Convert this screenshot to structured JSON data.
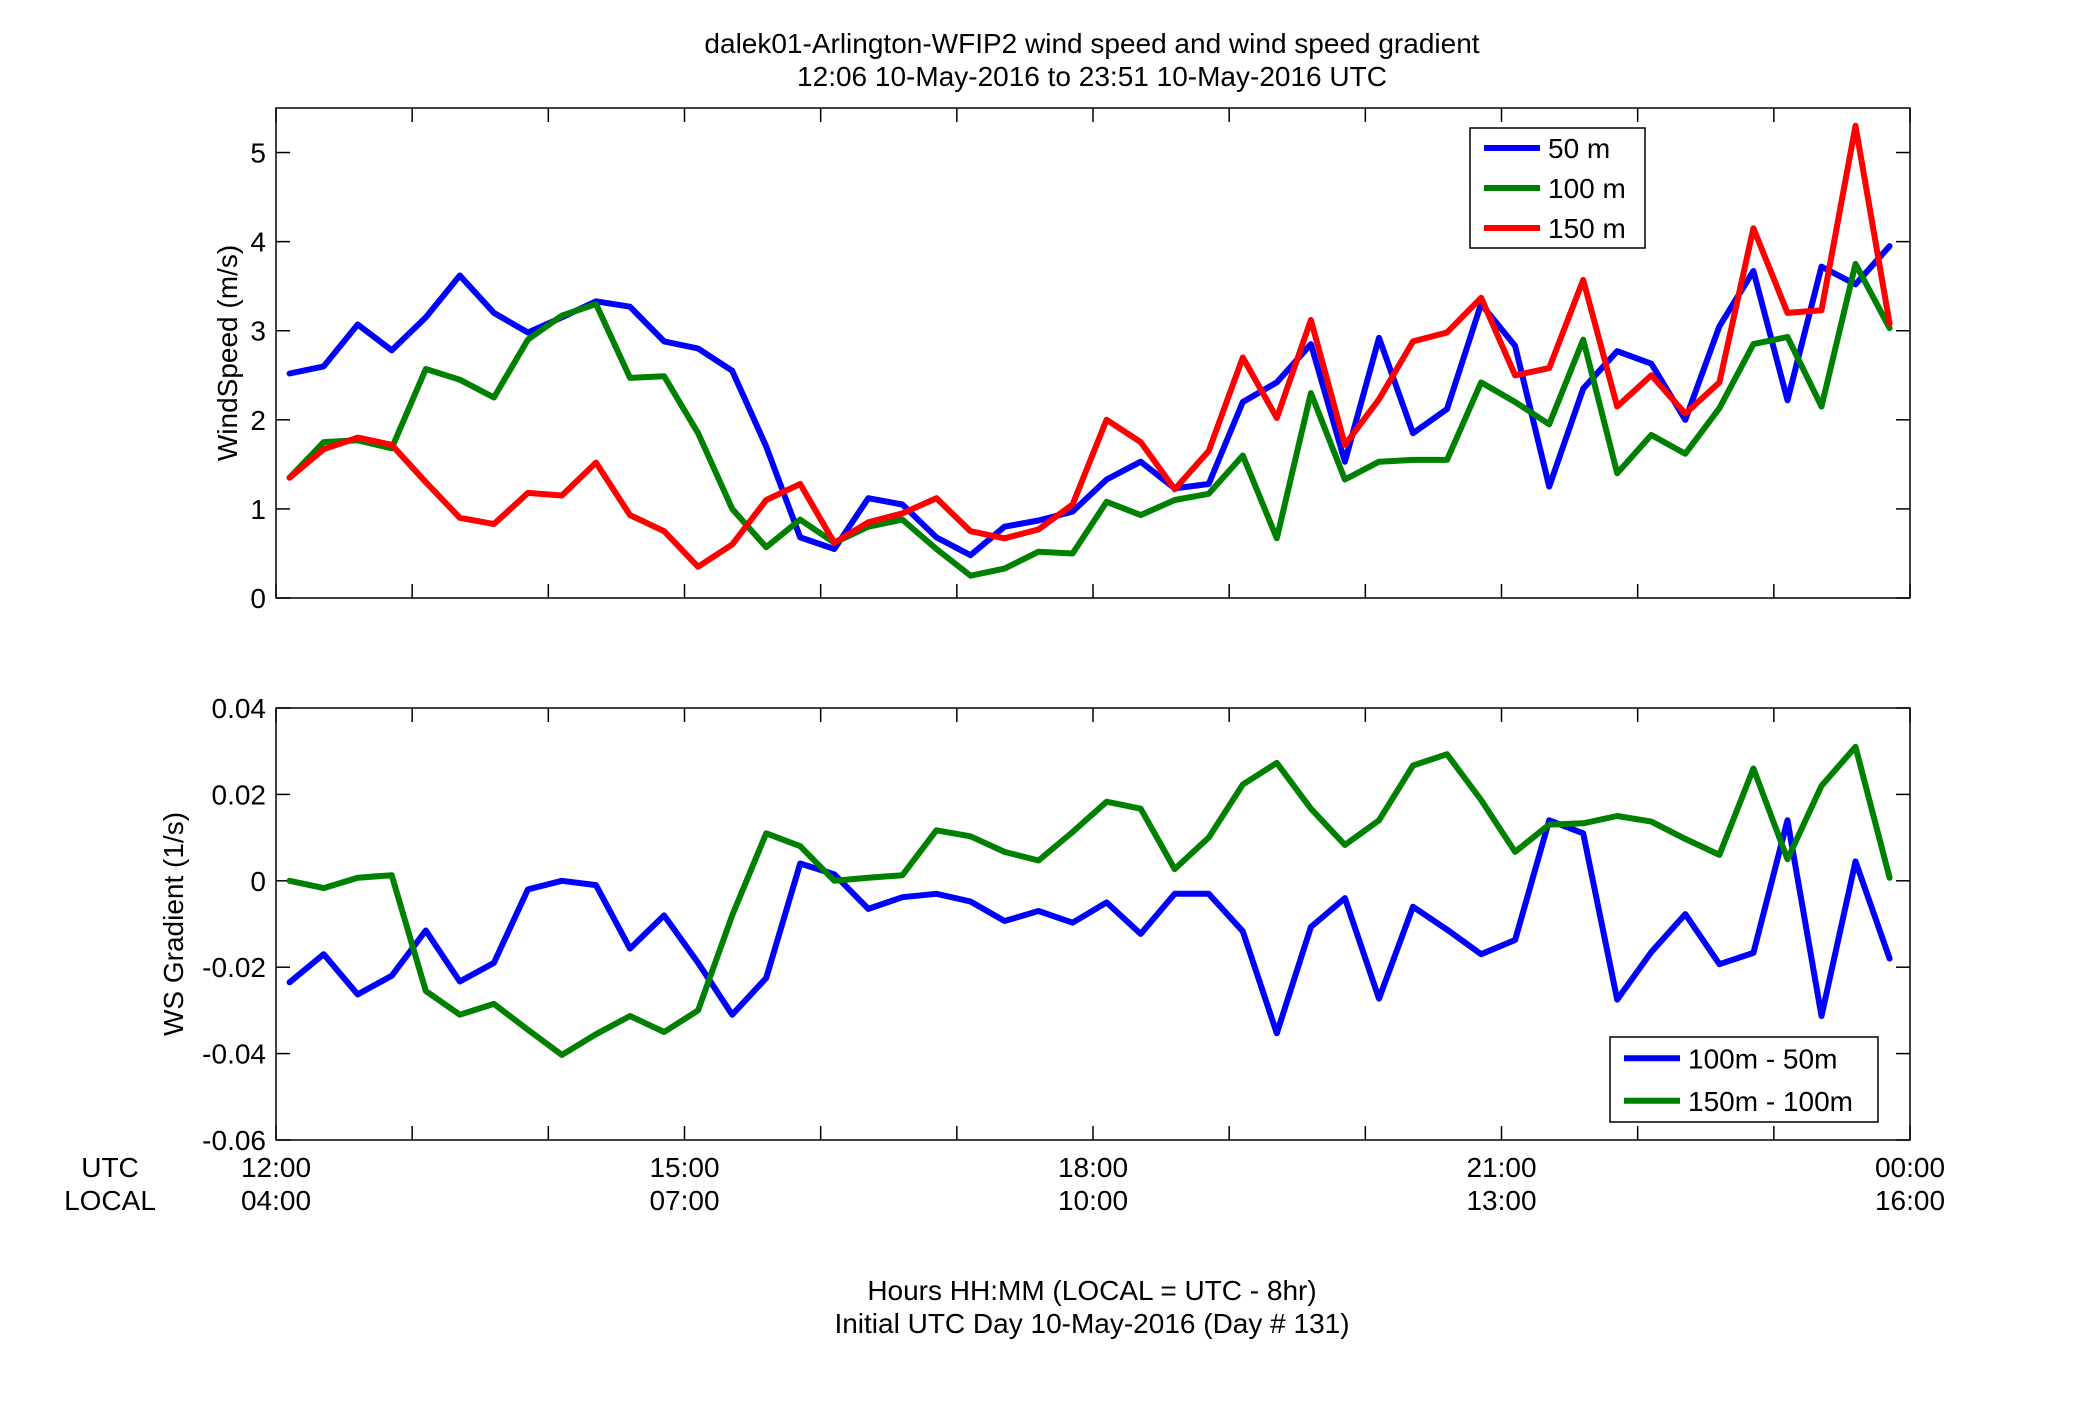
{
  "figure": {
    "title_line1": "dalek01-Arlington-WFIP2  wind speed and wind speed gradient",
    "title_line2": "12:06 10-May-2016 to 23:51 10-May-2016  UTC",
    "xlabel_line1": "Hours HH:MM  (LOCAL = UTC - 8hr)",
    "xlabel_line2": "Initial UTC Day 10-May-2016 (Day # 131)",
    "utc_label": "UTC",
    "local_label": "LOCAL",
    "x_ticks_utc": [
      "12:00",
      "15:00",
      "18:00",
      "21:00",
      "00:00"
    ],
    "x_ticks_local": [
      "04:00",
      "07:00",
      "10:00",
      "13:00",
      "16:00"
    ]
  },
  "chart_data": [
    {
      "type": "line",
      "title": "dalek01-Arlington-WFIP2  wind speed and wind speed gradient",
      "subtitle": "12:06 10-May-2016 to 23:51 10-May-2016  UTC",
      "xlabel": "",
      "ylabel": "WindSpeed (m/s)",
      "xlim": [
        12.0,
        24.0
      ],
      "ylim": [
        0,
        5.5
      ],
      "yticks": [
        0,
        1,
        2,
        3,
        4,
        5
      ],
      "xticks": [
        12,
        15,
        18,
        21,
        24
      ],
      "grid": false,
      "legend": "top-right",
      "x": [
        12.1,
        12.35,
        12.6,
        12.85,
        13.1,
        13.35,
        13.6,
        13.85,
        14.1,
        14.35,
        14.6,
        14.85,
        15.1,
        15.35,
        15.6,
        15.85,
        16.1,
        16.35,
        16.6,
        16.85,
        17.1,
        17.35,
        17.6,
        17.85,
        18.1,
        18.35,
        18.6,
        18.85,
        19.1,
        19.35,
        19.6,
        19.85,
        20.1,
        20.35,
        20.6,
        20.85,
        21.1,
        21.35,
        21.6,
        21.85,
        22.1,
        22.35,
        22.6,
        22.85,
        23.1,
        23.35,
        23.6,
        23.85
      ],
      "series": [
        {
          "name": "50 m",
          "color": "#0000ff",
          "values": [
            2.52,
            2.6,
            3.07,
            2.78,
            3.15,
            3.62,
            3.2,
            2.98,
            3.15,
            3.33,
            3.27,
            2.88,
            2.8,
            2.55,
            1.7,
            0.68,
            0.55,
            1.12,
            1.05,
            0.68,
            0.48,
            0.8,
            0.87,
            0.97,
            1.33,
            1.53,
            1.23,
            1.28,
            2.2,
            2.42,
            2.85,
            1.53,
            2.92,
            1.85,
            2.12,
            3.3,
            2.83,
            1.25,
            2.35,
            2.77,
            2.63,
            2.0,
            3.05,
            3.67,
            2.22,
            3.72,
            3.52,
            3.95
          ]
        },
        {
          "name": "100 m",
          "color": "#008000",
          "values": [
            1.35,
            1.75,
            1.77,
            1.68,
            2.57,
            2.45,
            2.25,
            2.9,
            3.17,
            3.3,
            2.47,
            2.49,
            1.85,
            1.0,
            0.57,
            0.88,
            0.62,
            0.8,
            0.88,
            0.55,
            0.25,
            0.33,
            0.52,
            0.5,
            1.08,
            0.93,
            1.1,
            1.17,
            1.6,
            0.67,
            2.3,
            1.33,
            1.53,
            1.55,
            1.55,
            2.42,
            2.2,
            1.95,
            2.9,
            1.4,
            1.83,
            1.62,
            2.13,
            2.85,
            2.93,
            2.15,
            3.75,
            3.03
          ]
        },
        {
          "name": "150 m",
          "color": "#ff0000",
          "values": [
            1.35,
            1.67,
            1.8,
            1.72,
            1.3,
            0.9,
            0.83,
            1.18,
            1.15,
            1.52,
            0.93,
            0.75,
            0.35,
            0.6,
            1.1,
            1.28,
            0.62,
            0.85,
            0.95,
            1.12,
            0.75,
            0.67,
            0.77,
            1.05,
            2.0,
            1.75,
            1.22,
            1.65,
            2.7,
            2.02,
            3.12,
            1.72,
            2.23,
            2.88,
            2.98,
            3.37,
            2.5,
            2.58,
            3.57,
            2.15,
            2.5,
            2.07,
            2.42,
            4.15,
            3.2,
            3.23,
            5.3,
            3.08
          ]
        }
      ]
    },
    {
      "type": "line",
      "title": "",
      "xlabel": "Hours HH:MM  (LOCAL = UTC - 8hr)",
      "ylabel": "WS Gradient (1/s)",
      "xlim": [
        12.0,
        24.0
      ],
      "ylim": [
        -0.06,
        0.04
      ],
      "yticks": [
        -0.06,
        -0.04,
        -0.02,
        0,
        0.02,
        0.04
      ],
      "ytick_labels": [
        "-0.06",
        "-0.04",
        "-0.02",
        "0",
        "0.02",
        "0.04"
      ],
      "xticks": [
        12,
        15,
        18,
        21,
        24
      ],
      "grid": false,
      "legend": "bottom-right",
      "x": [
        12.1,
        12.35,
        12.6,
        12.85,
        13.1,
        13.35,
        13.6,
        13.85,
        14.1,
        14.35,
        14.6,
        14.85,
        15.1,
        15.35,
        15.6,
        15.85,
        16.1,
        16.35,
        16.6,
        16.85,
        17.1,
        17.35,
        17.6,
        17.85,
        18.1,
        18.35,
        18.6,
        18.85,
        19.1,
        19.35,
        19.6,
        19.85,
        20.1,
        20.35,
        20.6,
        20.85,
        21.1,
        21.35,
        21.6,
        21.85,
        22.1,
        22.35,
        22.6,
        22.85,
        23.1,
        23.35,
        23.6,
        23.85
      ],
      "series": [
        {
          "name": "100m - 50m",
          "color": "#0000ff",
          "values": [
            -0.0235,
            -0.017,
            -0.0263,
            -0.022,
            -0.0115,
            -0.0233,
            -0.019,
            -0.002,
            0.0,
            -0.001,
            -0.0157,
            -0.008,
            -0.019,
            -0.031,
            -0.0225,
            0.004,
            0.0015,
            -0.0065,
            -0.0038,
            -0.003,
            -0.0048,
            -0.0093,
            -0.007,
            -0.0097,
            -0.005,
            -0.0123,
            -0.003,
            -0.003,
            -0.0117,
            -0.0353,
            -0.0107,
            -0.004,
            -0.0273,
            -0.006,
            -0.0113,
            -0.017,
            -0.0137,
            0.014,
            0.011,
            -0.0275,
            -0.0165,
            -0.0077,
            -0.0193,
            -0.0167,
            0.014,
            -0.0313,
            0.0045,
            -0.018
          ]
        },
        {
          "name": "150m - 100m",
          "color": "#008000",
          "values": [
            0.0,
            -0.0017,
            0.0007,
            0.0013,
            -0.0255,
            -0.031,
            -0.0285,
            -0.0345,
            -0.0403,
            -0.0355,
            -0.0313,
            -0.035,
            -0.03,
            -0.008,
            0.011,
            0.008,
            0.0,
            0.0007,
            0.0013,
            0.0117,
            0.0103,
            0.0067,
            0.0047,
            0.0113,
            0.0183,
            0.0167,
            0.0027,
            0.01,
            0.0223,
            0.0273,
            0.0167,
            0.0083,
            0.014,
            0.0267,
            0.0293,
            0.0187,
            0.0067,
            0.013,
            0.0133,
            0.015,
            0.0137,
            0.0097,
            0.006,
            0.026,
            0.005,
            0.022,
            0.031,
            0.0007
          ]
        }
      ]
    }
  ]
}
